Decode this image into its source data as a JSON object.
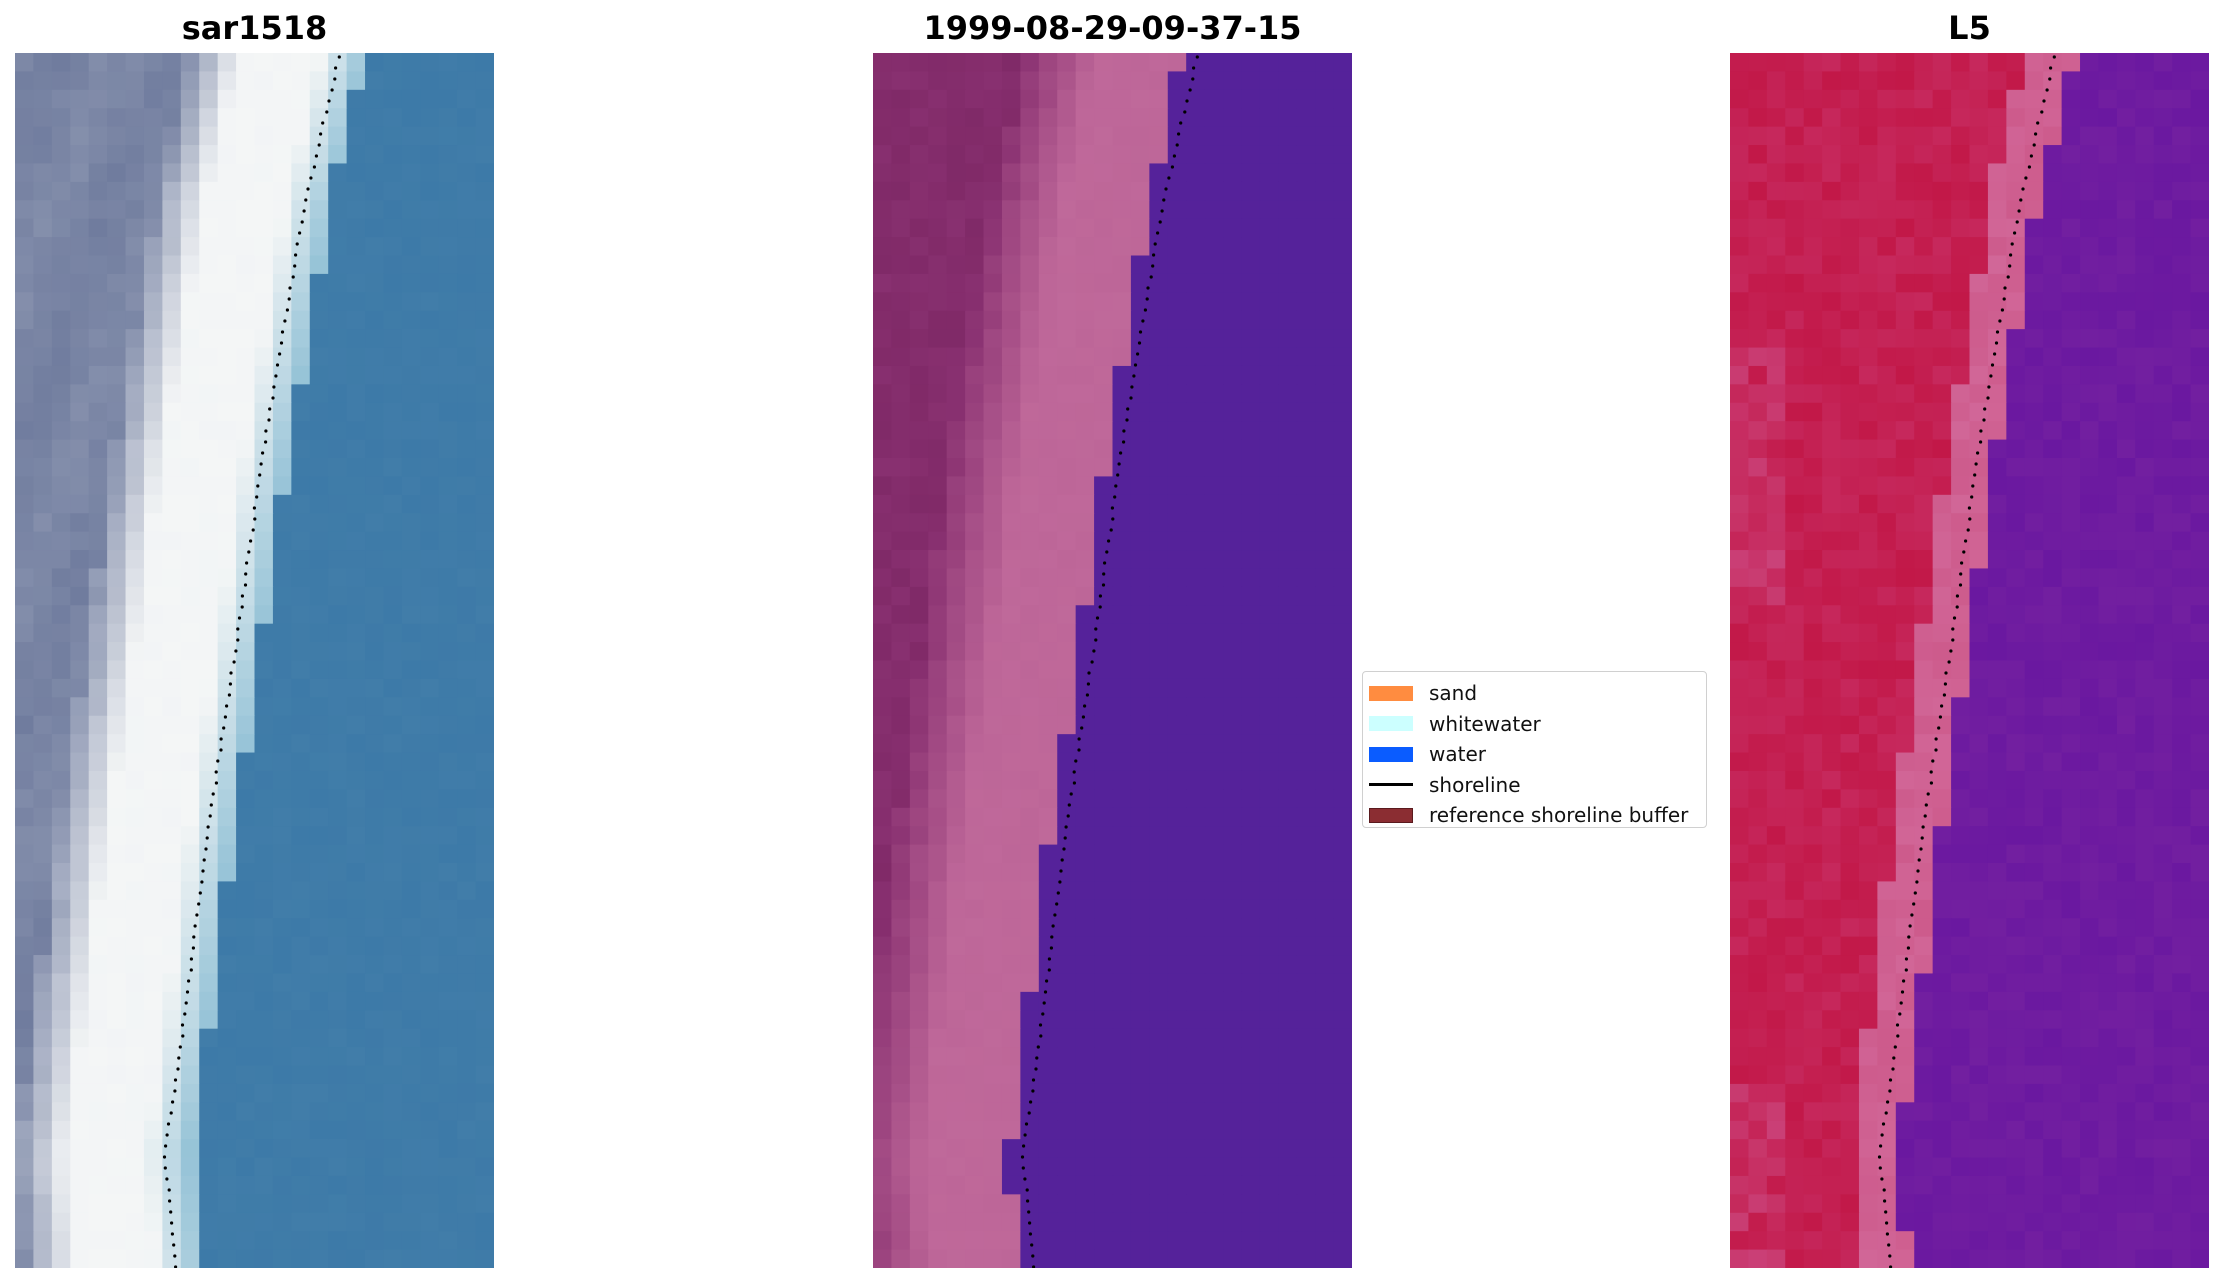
{
  "panels": [
    {
      "title": "sar1518"
    },
    {
      "title": "1999-08-29-09-37-15"
    },
    {
      "title": "L5"
    }
  ],
  "legend": {
    "items": [
      {
        "label": "sand",
        "color": "#ff8c40",
        "kind": "patch"
      },
      {
        "label": "whitewater",
        "color": "#ccffff",
        "kind": "patch"
      },
      {
        "label": "water",
        "color": "#0a5cff",
        "kind": "patch"
      },
      {
        "label": "shoreline",
        "color": "#000000",
        "kind": "line"
      },
      {
        "label": "reference shoreline buffer",
        "color": "#8b2d32",
        "kind": "patch"
      }
    ]
  },
  "colors": {
    "rgb_sand": "#7f8aa8",
    "rgb_whitewater": "#f4f6f6",
    "rgb_water": "#3d7aa8",
    "class_land": "#883070",
    "class_beach": "#bd6698",
    "class_water": "#55229a",
    "index_land": "#c21848",
    "index_beach": "#cd5b8c",
    "index_water": "#6a18a0"
  }
}
